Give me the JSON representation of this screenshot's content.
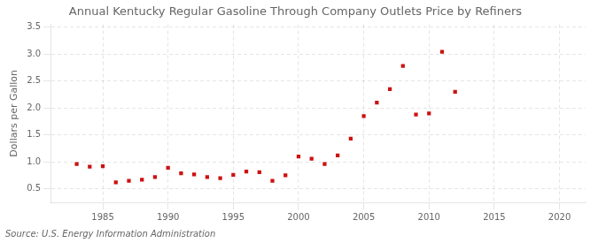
{
  "chart_data": {
    "type": "scatter",
    "title": "Annual Kentucky Regular Gasoline Through Company Outlets Price by Refiners",
    "ylabel": "Dollars per Gallon",
    "source": "Source: U.S. Energy Information Administration",
    "color": "#cc1111",
    "marker": "square",
    "grid": true,
    "x": [
      1983,
      1984,
      1985,
      1986,
      1987,
      1988,
      1989,
      1990,
      1991,
      1992,
      1993,
      1994,
      1995,
      1996,
      1997,
      1998,
      1999,
      2000,
      2001,
      2002,
      2003,
      2004,
      2005,
      2006,
      2007,
      2008,
      2009,
      2010,
      2011,
      2012
    ],
    "values": [
      0.96,
      0.91,
      0.92,
      0.62,
      0.65,
      0.67,
      0.72,
      0.89,
      0.79,
      0.77,
      0.72,
      0.7,
      0.76,
      0.82,
      0.81,
      0.65,
      0.75,
      1.1,
      1.06,
      0.96,
      1.12,
      1.43,
      1.85,
      2.1,
      2.35,
      2.78,
      1.88,
      1.9,
      3.04,
      2.3
    ],
    "xlim": [
      1981,
      2022
    ],
    "ylim": [
      0.25,
      3.55
    ],
    "xticks": [
      1985,
      1990,
      1995,
      2000,
      2005,
      2010,
      2015,
      2020
    ],
    "yticks": [
      0.5,
      {
        "value": 1.0,
        "label": "1.0"
      },
      1.5,
      {
        "value": 2.0,
        "label": "2.0"
      },
      2.5,
      {
        "value": 3.0,
        "label": "3.0"
      },
      3.5
    ]
  }
}
